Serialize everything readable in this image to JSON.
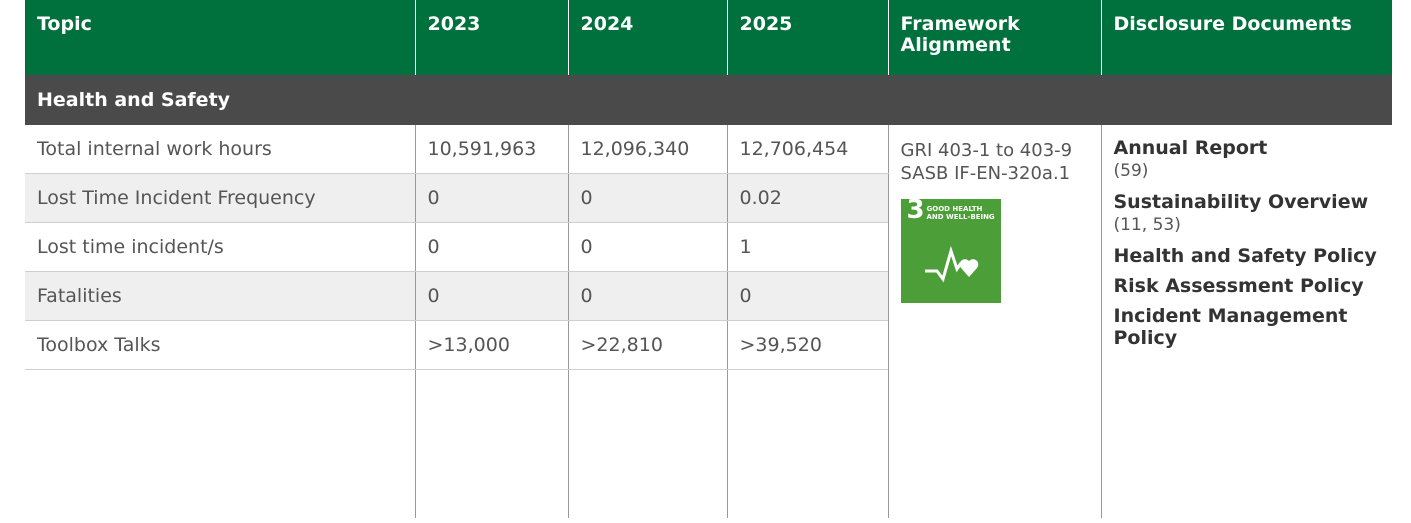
{
  "table": {
    "columns": [
      "Topic",
      "2023",
      "2024",
      "2025",
      "Framework Alignment",
      "Disclosure Documents"
    ],
    "section": "Health and Safety",
    "rows": [
      [
        "Total internal work hours",
        "10,591,963",
        "12,096,340",
        "12,706,454"
      ],
      [
        "Lost Time Incident Frequency",
        "0",
        "0",
        "0.02"
      ],
      [
        "Lost time incident/s",
        "0",
        "0",
        "1"
      ],
      [
        "Fatalities",
        "0",
        "0",
        "0"
      ],
      [
        "Toolbox Talks",
        ">13,000",
        ">22,810",
        ">39,520"
      ]
    ],
    "framework": [
      "GRI 403-1 to 403-9",
      "SASB IF-EN-320a.1"
    ],
    "sdg": {
      "number": "3",
      "label": "GOOD HEALTH AND WELL-BEING"
    },
    "documents": [
      {
        "title": "Annual Report",
        "pages": "(59)"
      },
      {
        "title": "Sustainability Overview",
        "pages": "(11, 53)"
      },
      {
        "title": "Health and Safety Policy"
      },
      {
        "title": "Risk Assessment Policy"
      },
      {
        "title": "Incident Management Policy"
      }
    ]
  }
}
